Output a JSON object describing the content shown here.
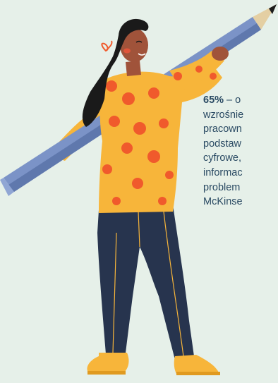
{
  "stat": {
    "percent": "65%",
    "dash": " – o",
    "lines": [
      "wzrośnie",
      "pracown",
      "podstaw",
      "cyfrowe,",
      "informac",
      "problem",
      "McKinse"
    ]
  },
  "colors": {
    "background": "#e6f0e9",
    "text": "#2a4a63",
    "pencil": "#7b93c7",
    "sweater": "#f7b53a",
    "dots": "#f05a2c",
    "pants": "#27344e",
    "shoes": "#f7b53a",
    "hair": "#1a1a1a",
    "skin": "#a0533a"
  },
  "illustration": {
    "subject": "woman-carrying-giant-pencil-icon"
  }
}
